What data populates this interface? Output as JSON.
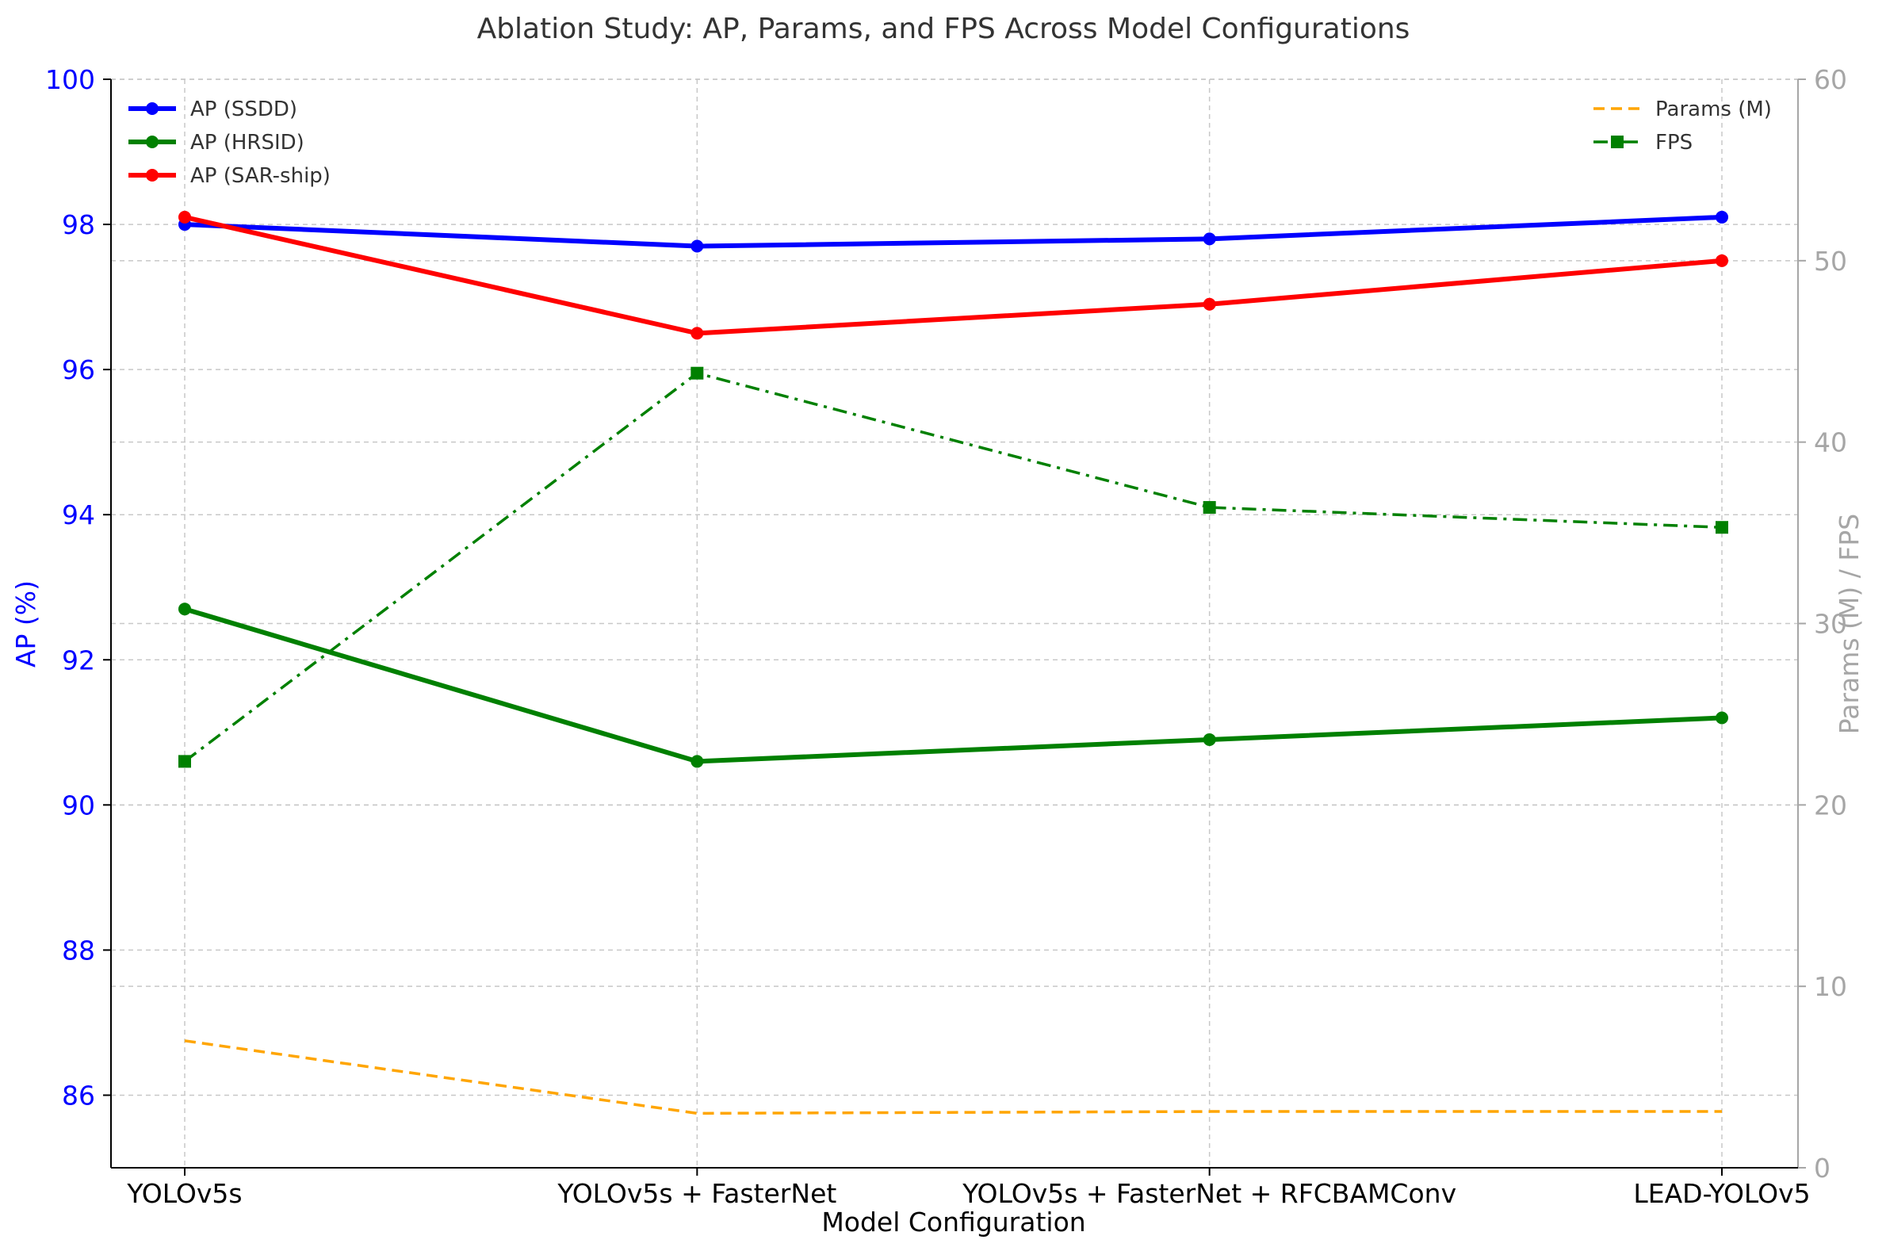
{
  "chart_data": {
    "type": "line",
    "title": "Ablation Study: AP, Params, and FPS Across Model Configurations",
    "xlabel": "Model Configuration",
    "ylabel_left": "AP (%)",
    "ylabel_right": "Params (M) / FPS",
    "categories": [
      "YOLOv5s",
      "YOLOv5s + FasterNet",
      "YOLOv5s + FasterNet + RFCBAMConv",
      "LEAD-YOLOv5"
    ],
    "ylim_left": [
      85,
      100
    ],
    "yticks_left": [
      86,
      88,
      90,
      92,
      94,
      96,
      98,
      100
    ],
    "ylim_right": [
      0,
      60
    ],
    "yticks_right": [
      0,
      10,
      20,
      30,
      40,
      50,
      60
    ],
    "grid": true,
    "series_left": [
      {
        "name": "AP (SSDD)",
        "values": [
          98.0,
          97.7,
          97.8,
          98.1
        ],
        "color": "#0000ff",
        "marker": "circle",
        "style": "solid"
      },
      {
        "name": "AP (HRSID)",
        "values": [
          92.7,
          90.6,
          90.9,
          91.2
        ],
        "color": "#008000",
        "marker": "circle",
        "style": "solid"
      },
      {
        "name": "AP (SAR-ship)",
        "values": [
          98.1,
          96.5,
          96.9,
          97.5
        ],
        "color": "#ff0000",
        "marker": "circle",
        "style": "solid"
      }
    ],
    "series_right": [
      {
        "name": "Params (M)",
        "values": [
          7.0,
          3.0,
          3.1,
          3.1
        ],
        "color": "#ffa500",
        "marker": "none",
        "style": "dashed"
      },
      {
        "name": "FPS",
        "values": [
          22.4,
          43.8,
          36.4,
          35.3
        ],
        "color": "#008000",
        "marker": "square",
        "style": "dashdot"
      }
    ],
    "legend_left_position": "upper-left",
    "legend_right_position": "upper-right"
  }
}
